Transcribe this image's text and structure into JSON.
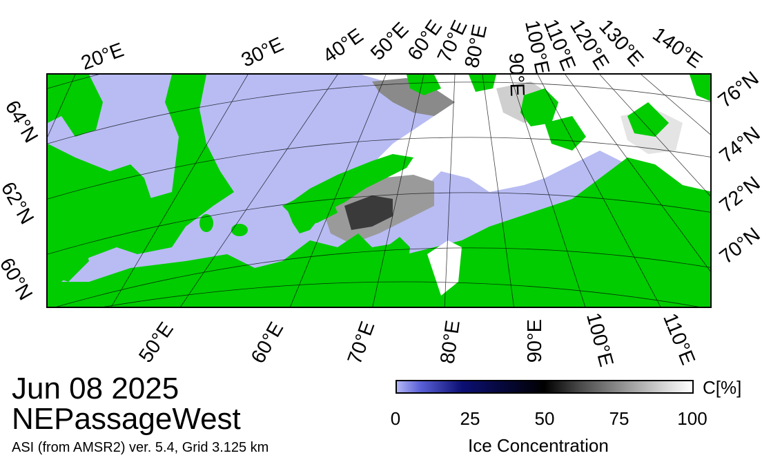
{
  "map": {
    "date": "Jun 08 2025",
    "region": "NEPassageWest",
    "source": "ASI (from AMSR2) ver. 5.4,  Grid 3.125 km",
    "top_lon_labels": [
      "20°E",
      "30°E",
      "40°E",
      "50°E",
      "60°E",
      "70°E",
      "80°E",
      "90°E",
      "100°E",
      "110°E",
      "120°E",
      "130°E",
      "140°E"
    ],
    "bottom_lon_labels": [
      "50°E",
      "60°E",
      "70°E",
      "80°E",
      "90°E",
      "100°E",
      "110°E"
    ],
    "left_lat_labels": [
      "64°N",
      "62°N",
      "60°N"
    ],
    "right_lat_labels": [
      "76°N",
      "74°N",
      "72°N",
      "70°N"
    ],
    "colors": {
      "land": "#00cc00",
      "water": "#b8bcf3",
      "ice": "#ffffff",
      "grid": "#000000"
    }
  },
  "colorbar": {
    "ticks": [
      "0",
      "25",
      "50",
      "75",
      "100"
    ],
    "unit": "C[%]",
    "title": "Ice Concentration"
  }
}
